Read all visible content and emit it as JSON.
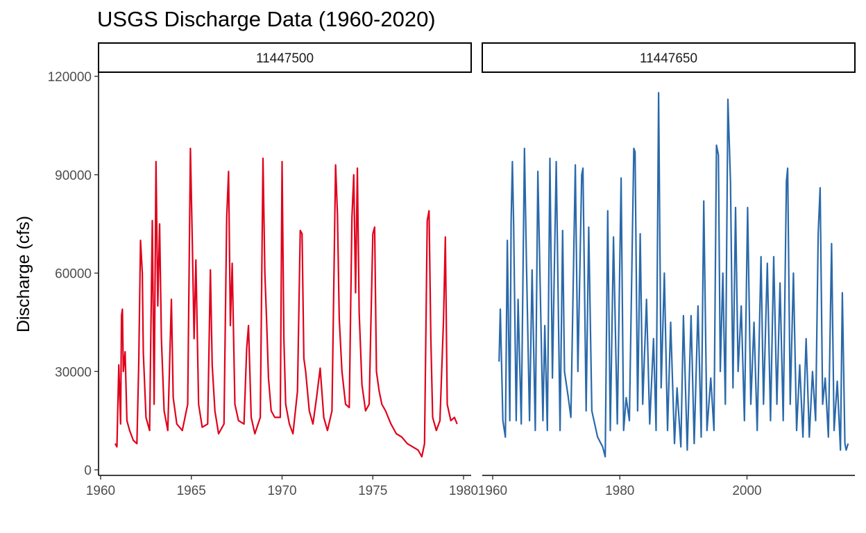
{
  "chart_data": {
    "type": "line",
    "title": "USGS Discharge Data (1960-2020)",
    "xlabel": "",
    "ylabel": "Discharge (cfs)",
    "ylim": [
      0,
      120000
    ],
    "y_ticks": [
      0,
      30000,
      60000,
      90000,
      120000
    ],
    "grid": false,
    "legend": "none",
    "facets": [
      {
        "strip_label": "11447500",
        "color": "#E0001B",
        "xlim": [
          1960,
          1980
        ],
        "x_ticks": [
          1960,
          1965,
          1970,
          1975,
          1980
        ],
        "x_tick_labels": [
          "1960",
          "1965",
          "1970",
          "1975",
          "1980"
        ],
        "values": [
          [
            1960.8,
            8000
          ],
          [
            1960.9,
            7000
          ],
          [
            1961.0,
            32000
          ],
          [
            1961.1,
            14000
          ],
          [
            1961.15,
            47000
          ],
          [
            1961.2,
            49000
          ],
          [
            1961.25,
            30000
          ],
          [
            1961.35,
            36000
          ],
          [
            1961.45,
            15000
          ],
          [
            1961.6,
            12000
          ],
          [
            1961.8,
            9000
          ],
          [
            1962.0,
            8000
          ],
          [
            1962.1,
            32000
          ],
          [
            1962.2,
            70000
          ],
          [
            1962.3,
            60000
          ],
          [
            1962.35,
            36000
          ],
          [
            1962.5,
            16000
          ],
          [
            1962.7,
            12000
          ],
          [
            1962.85,
            76000
          ],
          [
            1962.95,
            20000
          ],
          [
            1963.05,
            94000
          ],
          [
            1963.15,
            50000
          ],
          [
            1963.25,
            75000
          ],
          [
            1963.35,
            40000
          ],
          [
            1963.5,
            18000
          ],
          [
            1963.7,
            12000
          ],
          [
            1963.9,
            52000
          ],
          [
            1964.0,
            22000
          ],
          [
            1964.2,
            14000
          ],
          [
            1964.5,
            12000
          ],
          [
            1964.8,
            20000
          ],
          [
            1964.95,
            98000
          ],
          [
            1965.05,
            70000
          ],
          [
            1965.15,
            40000
          ],
          [
            1965.25,
            64000
          ],
          [
            1965.4,
            20000
          ],
          [
            1965.6,
            13000
          ],
          [
            1965.9,
            14000
          ],
          [
            1966.05,
            61000
          ],
          [
            1966.15,
            32000
          ],
          [
            1966.3,
            18000
          ],
          [
            1966.5,
            11000
          ],
          [
            1966.8,
            14000
          ],
          [
            1966.95,
            77000
          ],
          [
            1967.05,
            91000
          ],
          [
            1967.15,
            44000
          ],
          [
            1967.25,
            63000
          ],
          [
            1967.4,
            20000
          ],
          [
            1967.6,
            15000
          ],
          [
            1967.9,
            14000
          ],
          [
            1968.05,
            37000
          ],
          [
            1968.15,
            44000
          ],
          [
            1968.3,
            16000
          ],
          [
            1968.5,
            11000
          ],
          [
            1968.8,
            16000
          ],
          [
            1968.95,
            95000
          ],
          [
            1969.05,
            60000
          ],
          [
            1969.15,
            45000
          ],
          [
            1969.25,
            28000
          ],
          [
            1969.4,
            18000
          ],
          [
            1969.6,
            16000
          ],
          [
            1969.9,
            16000
          ],
          [
            1970.0,
            94000
          ],
          [
            1970.1,
            40000
          ],
          [
            1970.2,
            20000
          ],
          [
            1970.4,
            14000
          ],
          [
            1970.6,
            11000
          ],
          [
            1970.85,
            24000
          ],
          [
            1971.0,
            73000
          ],
          [
            1971.1,
            72000
          ],
          [
            1971.2,
            34000
          ],
          [
            1971.3,
            30000
          ],
          [
            1971.5,
            18000
          ],
          [
            1971.7,
            14000
          ],
          [
            1971.9,
            22000
          ],
          [
            1972.1,
            31000
          ],
          [
            1972.3,
            16000
          ],
          [
            1972.5,
            12000
          ],
          [
            1972.75,
            18000
          ],
          [
            1972.95,
            93000
          ],
          [
            1973.05,
            78000
          ],
          [
            1973.15,
            46000
          ],
          [
            1973.3,
            30000
          ],
          [
            1973.5,
            20000
          ],
          [
            1973.7,
            19000
          ],
          [
            1973.85,
            77000
          ],
          [
            1973.95,
            90000
          ],
          [
            1974.05,
            54000
          ],
          [
            1974.15,
            92000
          ],
          [
            1974.25,
            48000
          ],
          [
            1974.4,
            26000
          ],
          [
            1974.6,
            18000
          ],
          [
            1974.8,
            20000
          ],
          [
            1975.0,
            72000
          ],
          [
            1975.1,
            74000
          ],
          [
            1975.2,
            30000
          ],
          [
            1975.35,
            24000
          ],
          [
            1975.5,
            20000
          ],
          [
            1975.7,
            18000
          ],
          [
            1976.0,
            14000
          ],
          [
            1976.3,
            11000
          ],
          [
            1976.6,
            10000
          ],
          [
            1976.9,
            8000
          ],
          [
            1977.2,
            7000
          ],
          [
            1977.5,
            6000
          ],
          [
            1977.7,
            4000
          ],
          [
            1977.85,
            8000
          ],
          [
            1978.0,
            76000
          ],
          [
            1978.1,
            79000
          ],
          [
            1978.2,
            40000
          ],
          [
            1978.3,
            16000
          ],
          [
            1978.5,
            12000
          ],
          [
            1978.7,
            15000
          ],
          [
            1978.9,
            46000
          ],
          [
            1979.0,
            71000
          ],
          [
            1979.1,
            20000
          ],
          [
            1979.3,
            15000
          ],
          [
            1979.5,
            16000
          ],
          [
            1979.65,
            14000
          ]
        ]
      },
      {
        "strip_label": "11447650",
        "color": "#2A69AA",
        "xlim": [
          1960,
          2018.5
        ],
        "x_ticks": [
          1960,
          1980,
          2000
        ],
        "x_tick_labels": [
          "1960",
          "1980",
          "2000"
        ],
        "values": [
          [
            1961.0,
            33000
          ],
          [
            1961.2,
            49000
          ],
          [
            1961.6,
            15000
          ],
          [
            1962.0,
            10000
          ],
          [
            1962.3,
            70000
          ],
          [
            1962.7,
            15000
          ],
          [
            1962.9,
            76000
          ],
          [
            1963.1,
            94000
          ],
          [
            1963.3,
            75000
          ],
          [
            1963.7,
            15000
          ],
          [
            1964.0,
            52000
          ],
          [
            1964.5,
            14000
          ],
          [
            1965.0,
            98000
          ],
          [
            1965.3,
            64000
          ],
          [
            1965.8,
            15000
          ],
          [
            1966.2,
            61000
          ],
          [
            1966.7,
            12000
          ],
          [
            1967.1,
            91000
          ],
          [
            1967.4,
            63000
          ],
          [
            1967.9,
            15000
          ],
          [
            1968.2,
            44000
          ],
          [
            1968.6,
            12000
          ],
          [
            1969.0,
            95000
          ],
          [
            1969.4,
            28000
          ],
          [
            1970.0,
            94000
          ],
          [
            1970.6,
            12000
          ],
          [
            1971.0,
            73000
          ],
          [
            1971.3,
            30000
          ],
          [
            1971.9,
            22000
          ],
          [
            1972.3,
            16000
          ],
          [
            1973.0,
            93000
          ],
          [
            1973.4,
            30000
          ],
          [
            1974.0,
            90000
          ],
          [
            1974.2,
            92000
          ],
          [
            1974.7,
            18000
          ],
          [
            1975.1,
            74000
          ],
          [
            1975.6,
            18000
          ],
          [
            1976.5,
            10000
          ],
          [
            1977.3,
            7000
          ],
          [
            1977.7,
            4000
          ],
          [
            1978.1,
            79000
          ],
          [
            1978.5,
            12000
          ],
          [
            1979.0,
            71000
          ],
          [
            1979.6,
            14000
          ],
          [
            1980.2,
            89000
          ],
          [
            1980.6,
            12000
          ],
          [
            1981.0,
            22000
          ],
          [
            1981.5,
            15000
          ],
          [
            1982.2,
            98000
          ],
          [
            1982.4,
            97000
          ],
          [
            1982.8,
            18000
          ],
          [
            1983.2,
            72000
          ],
          [
            1983.6,
            20000
          ],
          [
            1984.2,
            52000
          ],
          [
            1984.7,
            14000
          ],
          [
            1985.3,
            40000
          ],
          [
            1985.7,
            12000
          ],
          [
            1986.1,
            115000
          ],
          [
            1986.5,
            25000
          ],
          [
            1987.0,
            60000
          ],
          [
            1987.5,
            12000
          ],
          [
            1988.0,
            45000
          ],
          [
            1988.6,
            8000
          ],
          [
            1989.0,
            25000
          ],
          [
            1989.6,
            7000
          ],
          [
            1990.0,
            47000
          ],
          [
            1990.6,
            6000
          ],
          [
            1991.2,
            47000
          ],
          [
            1991.7,
            8000
          ],
          [
            1992.3,
            50000
          ],
          [
            1992.8,
            10000
          ],
          [
            1993.2,
            82000
          ],
          [
            1993.7,
            12000
          ],
          [
            1994.3,
            28000
          ],
          [
            1994.8,
            12000
          ],
          [
            1995.2,
            99000
          ],
          [
            1995.5,
            96000
          ],
          [
            1995.8,
            30000
          ],
          [
            1996.2,
            60000
          ],
          [
            1996.6,
            20000
          ],
          [
            1997.0,
            113000
          ],
          [
            1997.4,
            88000
          ],
          [
            1997.8,
            25000
          ],
          [
            1998.2,
            80000
          ],
          [
            1998.6,
            30000
          ],
          [
            1999.1,
            50000
          ],
          [
            1999.6,
            15000
          ],
          [
            2000.1,
            80000
          ],
          [
            2000.6,
            20000
          ],
          [
            2001.1,
            45000
          ],
          [
            2001.6,
            12000
          ],
          [
            2002.2,
            65000
          ],
          [
            2002.6,
            20000
          ],
          [
            2003.2,
            63000
          ],
          [
            2003.7,
            15000
          ],
          [
            2004.2,
            65000
          ],
          [
            2004.7,
            20000
          ],
          [
            2005.2,
            57000
          ],
          [
            2005.7,
            15000
          ],
          [
            2006.2,
            88000
          ],
          [
            2006.4,
            92000
          ],
          [
            2006.8,
            20000
          ],
          [
            2007.3,
            60000
          ],
          [
            2007.8,
            12000
          ],
          [
            2008.3,
            32000
          ],
          [
            2008.8,
            10000
          ],
          [
            2009.3,
            40000
          ],
          [
            2009.8,
            10000
          ],
          [
            2010.3,
            30000
          ],
          [
            2010.8,
            15000
          ],
          [
            2011.2,
            72000
          ],
          [
            2011.5,
            86000
          ],
          [
            2011.9,
            20000
          ],
          [
            2012.3,
            28000
          ],
          [
            2012.8,
            10000
          ],
          [
            2013.3,
            69000
          ],
          [
            2013.7,
            12000
          ],
          [
            2014.2,
            27000
          ],
          [
            2014.7,
            6000
          ],
          [
            2015.0,
            54000
          ],
          [
            2015.4,
            8000
          ],
          [
            2015.6,
            6000
          ],
          [
            2015.9,
            8000
          ]
        ]
      }
    ]
  }
}
